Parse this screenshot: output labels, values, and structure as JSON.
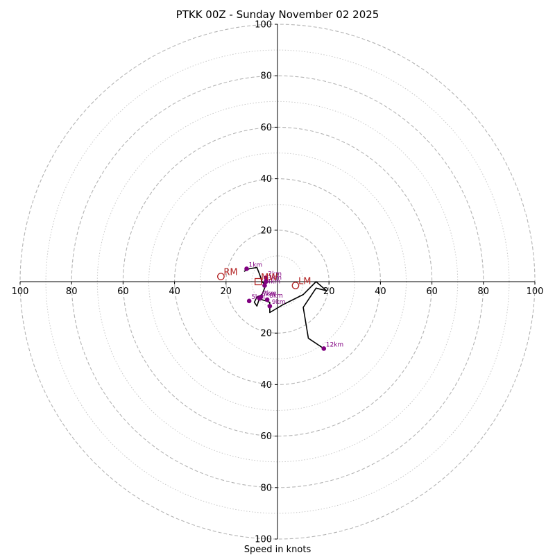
{
  "chart_data": {
    "type": "hodograph",
    "title": "PTKK 00Z - Sunday November 02 2025",
    "xlabel": "Speed in knots",
    "units": "knots",
    "range": 100,
    "rings_major": [
      20,
      40,
      60,
      80,
      100
    ],
    "rings_minor": [
      10,
      30,
      50,
      70,
      90
    ],
    "x_tick_labels": [
      "100",
      "80",
      "60",
      "40",
      "20",
      "20",
      "40",
      "60",
      "80",
      "100"
    ],
    "x_tick_values": [
      -100,
      -80,
      -60,
      -40,
      -20,
      20,
      40,
      60,
      80,
      100
    ],
    "y_tick_labels": [
      "100",
      "80",
      "60",
      "40",
      "20",
      "20",
      "40",
      "60",
      "80",
      "100"
    ],
    "y_tick_values": [
      100,
      80,
      60,
      40,
      20,
      -20,
      -40,
      -60,
      -80,
      -100
    ],
    "trace_color": "#000000",
    "marker_color": "#800080",
    "motion_color": "#b22222",
    "trace": [
      {
        "u": -13,
        "v": 4
      },
      {
        "u": -11,
        "v": 5
      },
      {
        "u": -8,
        "v": 5.5
      },
      {
        "u": -7,
        "v": 3
      },
      {
        "u": -6,
        "v": 0
      },
      {
        "u": -5,
        "v": -1
      },
      {
        "u": -5,
        "v": -2.5
      },
      {
        "u": -6,
        "v": -5
      },
      {
        "u": -8,
        "v": -6
      },
      {
        "u": -9,
        "v": -8
      },
      {
        "u": -8,
        "v": -9.5
      },
      {
        "u": -7,
        "v": -6.5
      },
      {
        "u": -6,
        "v": -7
      },
      {
        "u": -3,
        "v": -8
      },
      {
        "u": -3,
        "v": -12
      },
      {
        "u": 2,
        "v": -9
      },
      {
        "u": 10,
        "v": -5
      },
      {
        "u": 15,
        "v": 0
      },
      {
        "u": 19,
        "v": -3.5
      },
      {
        "u": 15,
        "v": -2.5
      },
      {
        "u": 10,
        "v": -10
      },
      {
        "u": 12,
        "v": -22
      },
      {
        "u": 18,
        "v": -26
      }
    ],
    "height_markers": [
      {
        "label": "1km",
        "u": -12,
        "v": 5
      },
      {
        "label": "2km",
        "u": -4.5,
        "v": 1.5
      },
      {
        "label": "3km",
        "u": -4.5,
        "v": 0
      },
      {
        "label": "4km",
        "u": -5,
        "v": -1.5
      },
      {
        "label": "5km",
        "u": -11,
        "v": -7.5
      },
      {
        "label": "6km",
        "u": -7,
        "v": -6.5
      },
      {
        "label": "7km",
        "u": -6.5,
        "v": -6
      },
      {
        "label": "8km",
        "u": -4,
        "v": -7
      },
      {
        "label": "9km",
        "u": -3,
        "v": -9.5
      },
      {
        "label": "12km",
        "u": 18,
        "v": -26
      }
    ],
    "storm_motions": [
      {
        "label": "RM",
        "u": -22,
        "v": 2,
        "symbol": "circle"
      },
      {
        "label": "LM",
        "u": 7,
        "v": -1.5,
        "symbol": "circle"
      },
      {
        "label": "MW",
        "u": -7.5,
        "v": 0,
        "symbol": "square"
      }
    ]
  }
}
